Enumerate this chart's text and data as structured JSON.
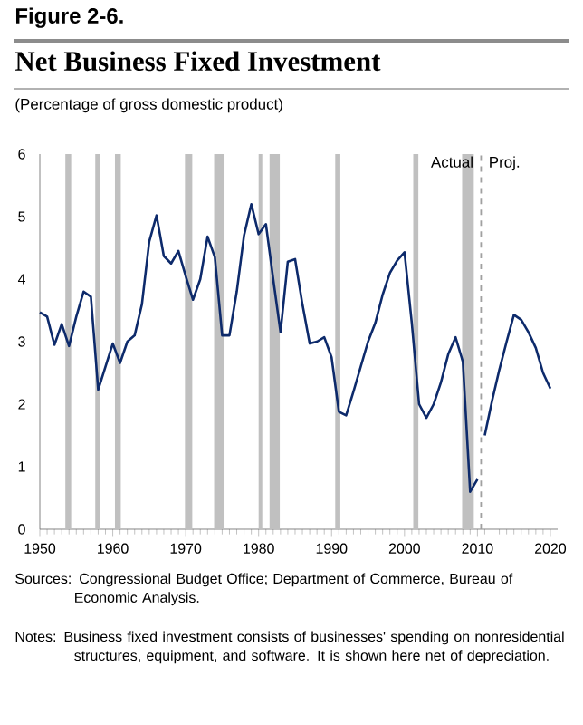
{
  "chart_data": {
    "type": "line",
    "title": "Net Business Fixed Investment",
    "subtitle": "(Percentage of gross domestic product)",
    "annotations": [
      "Figure 2-6.",
      "Actual",
      "Proj.",
      "Sources: Congressional Budget Office; Department of Commerce, Bureau of Economic Analysis.",
      "Notes: Business fixed investment consists of businesses' spending on nonresidential structures, equipment, and software. It is shown here net of depreciation."
    ],
    "xlim": [
      1950,
      2021
    ],
    "xticks": [
      1950,
      1960,
      1970,
      1980,
      1990,
      2000,
      2010,
      2020
    ],
    "ylim": [
      0,
      6
    ],
    "yticks": [
      0,
      1,
      2,
      3,
      4,
      5,
      6
    ],
    "ref_lines": [
      {
        "axis": "x",
        "value": 2010.5,
        "color": "#a0a0a0",
        "line_style": "dashed"
      }
    ],
    "bands": [
      {
        "axis": "x",
        "from": 1953.5,
        "to": 1954.3,
        "color": "#c0c0c0"
      },
      {
        "axis": "x",
        "from": 1957.6,
        "to": 1958.3,
        "color": "#c0c0c0"
      },
      {
        "axis": "x",
        "from": 1960.3,
        "to": 1961.1,
        "color": "#c0c0c0"
      },
      {
        "axis": "x",
        "from": 1969.9,
        "to": 1970.9,
        "color": "#c0c0c0"
      },
      {
        "axis": "x",
        "from": 1973.9,
        "to": 1975.2,
        "color": "#c0c0c0"
      },
      {
        "axis": "x",
        "from": 1980.0,
        "to": 1980.5,
        "color": "#c0c0c0"
      },
      {
        "axis": "x",
        "from": 1981.5,
        "to": 1982.9,
        "color": "#c0c0c0"
      },
      {
        "axis": "x",
        "from": 1990.5,
        "to": 1991.2,
        "color": "#c0c0c0"
      },
      {
        "axis": "x",
        "from": 2001.2,
        "to": 2001.9,
        "color": "#c0c0c0"
      },
      {
        "axis": "x",
        "from": 2007.9,
        "to": 2009.5,
        "color": "#c0c0c0"
      }
    ],
    "series": [
      {
        "color": "#0d2a6b",
        "x": [
          1950,
          1951,
          1952,
          1953,
          1954,
          1955,
          1956,
          1957,
          1958,
          1959,
          1960,
          1961,
          1962,
          1963,
          1964,
          1965,
          1966,
          1967,
          1968,
          1969,
          1970,
          1971,
          1972,
          1973,
          1974,
          1975,
          1976,
          1977,
          1978,
          1979,
          1980,
          1981,
          1982,
          1983,
          1984,
          1985,
          1986,
          1987,
          1988,
          1989,
          1990,
          1991,
          1992,
          1993,
          1994,
          1995,
          1996,
          1997,
          1998,
          1999,
          2000,
          2001,
          2002,
          2003,
          2004,
          2005,
          2006,
          2007,
          2008,
          2009,
          2010
        ],
        "values": [
          3.47,
          3.4,
          2.95,
          3.28,
          2.93,
          3.4,
          3.8,
          3.72,
          2.23,
          2.6,
          2.97,
          2.66,
          3.0,
          3.1,
          3.6,
          4.6,
          5.02,
          4.37,
          4.25,
          4.45,
          4.05,
          3.67,
          4.0,
          4.68,
          4.35,
          3.1,
          3.1,
          3.8,
          4.7,
          5.2,
          4.72,
          4.88,
          4.0,
          3.15,
          4.28,
          4.32,
          3.6,
          2.97,
          3.0,
          3.07,
          2.75,
          1.88,
          1.82,
          2.2,
          2.6,
          3.0,
          3.3,
          3.75,
          4.1,
          4.3,
          4.43,
          3.3,
          2.0,
          1.78,
          2.0,
          2.35,
          2.8,
          3.07,
          2.68,
          0.6,
          0.8
        ]
      },
      {
        "color": "#0d2a6b",
        "x": [
          2011,
          2012,
          2013,
          2014,
          2015,
          2016,
          2017,
          2018,
          2019,
          2020
        ],
        "values": [
          1.5,
          2.05,
          2.55,
          3.0,
          3.43,
          3.35,
          3.15,
          2.9,
          2.5,
          2.25
        ]
      }
    ]
  }
}
